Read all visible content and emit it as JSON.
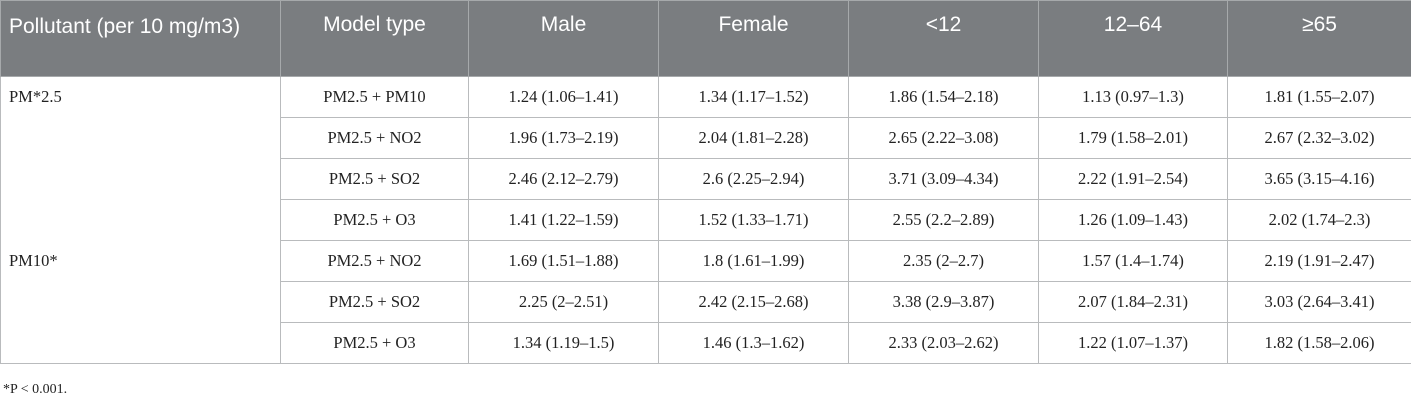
{
  "table": {
    "headers": {
      "pollutant": "Pollutant (per 10 mg/m3)",
      "model_type": "Model type",
      "male": "Male",
      "female": "Female",
      "lt12": "<12",
      "age_12_64": "12–64",
      "ge65": "≥65"
    },
    "rows": [
      {
        "group": "PM*2.5",
        "model": "PM2.5 + PM10",
        "male": "1.24 (1.06–1.41)",
        "female": "1.34 (1.17–1.52)",
        "lt12": "1.86 (1.54–2.18)",
        "age_12_64": "1.13 (0.97–1.3)",
        "ge65": "1.81 (1.55–2.07)"
      },
      {
        "group": "",
        "model": "PM2.5 + NO2",
        "male": "1.96 (1.73–2.19)",
        "female": "2.04 (1.81–2.28)",
        "lt12": "2.65 (2.22–3.08)",
        "age_12_64": "1.79 (1.58–2.01)",
        "ge65": "2.67 (2.32–3.02)"
      },
      {
        "group": "",
        "model": "PM2.5 + SO2",
        "male": "2.46 (2.12–2.79)",
        "female": "2.6 (2.25–2.94)",
        "lt12": "3.71 (3.09–4.34)",
        "age_12_64": "2.22 (1.91–2.54)",
        "ge65": "3.65 (3.15–4.16)"
      },
      {
        "group": "",
        "model": "PM2.5 + O3",
        "male": "1.41 (1.22–1.59)",
        "female": "1.52 (1.33–1.71)",
        "lt12": "2.55 (2.2–2.89)",
        "age_12_64": "1.26 (1.09–1.43)",
        "ge65": "2.02 (1.74–2.3)"
      },
      {
        "group": "PM10*",
        "model": "PM2.5 + NO2",
        "male": "1.69 (1.51–1.88)",
        "female": "1.8 (1.61–1.99)",
        "lt12": "2.35 (2–2.7)",
        "age_12_64": "1.57 (1.4–1.74)",
        "ge65": "2.19 (1.91–2.47)"
      },
      {
        "group": "",
        "model": "PM2.5 + SO2",
        "male": "2.25 (2–2.51)",
        "female": "2.42 (2.15–2.68)",
        "lt12": "3.38 (2.9–3.87)",
        "age_12_64": "2.07 (1.84–2.31)",
        "ge65": "3.03 (2.64–3.41)"
      },
      {
        "group": "",
        "model": "PM2.5 + O3",
        "male": "1.34 (1.19–1.5)",
        "female": "1.46 (1.3–1.62)",
        "lt12": "2.33 (2.03–2.62)",
        "age_12_64": "1.22 (1.07–1.37)",
        "ge65": "1.82 (1.58–2.06)"
      }
    ]
  },
  "footnote": "*P < 0.001."
}
